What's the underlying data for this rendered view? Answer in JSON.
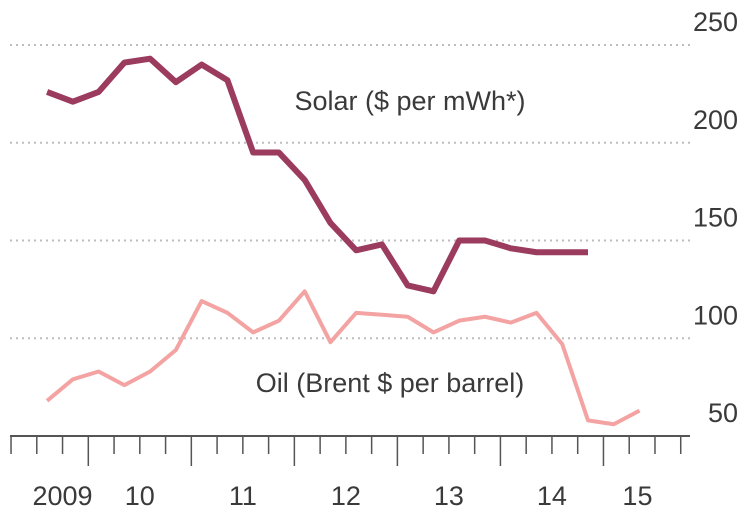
{
  "chart_data": {
    "type": "line",
    "x": [
      2009.6,
      2009.85,
      2010.1,
      2010.35,
      2010.6,
      2010.85,
      2011.1,
      2011.35,
      2011.6,
      2011.85,
      2012.1,
      2012.35,
      2012.6,
      2012.85,
      2013.1,
      2013.35,
      2013.6,
      2013.85,
      2014.1,
      2014.35,
      2014.6,
      2014.85,
      2015.1,
      2015.35
    ],
    "series": [
      {
        "name": "Solar ($ per mWh*)",
        "color": "#9b3b5e",
        "values": [
          226,
          221,
          226,
          241,
          243,
          231,
          240,
          232,
          195,
          195,
          181,
          159,
          145,
          148,
          127,
          124,
          150,
          150,
          146,
          144,
          144,
          144,
          null,
          null
        ]
      },
      {
        "name": "Oil (Brent $ per barrel)",
        "color": "#f4a3a3",
        "values": [
          68,
          79,
          83,
          76,
          83,
          94,
          119,
          113,
          103,
          109,
          124,
          98,
          113,
          112,
          111,
          103,
          109,
          111,
          108,
          113,
          97,
          58,
          56,
          63
        ]
      }
    ],
    "xlim": [
      2009.24,
      2015.84
    ],
    "xticks": [
      {
        "value": 2009.75,
        "label": "2009"
      },
      {
        "value": 2010.5,
        "label": "10"
      },
      {
        "value": 2011.5,
        "label": "11"
      },
      {
        "value": 2012.5,
        "label": "12"
      },
      {
        "value": 2013.5,
        "label": "13"
      },
      {
        "value": 2014.5,
        "label": "14"
      },
      {
        "value": 2015.33,
        "label": "15"
      }
    ],
    "ylim": [
      50,
      250
    ],
    "yticks": [
      50,
      100,
      150,
      200,
      250
    ],
    "grid": true
  }
}
